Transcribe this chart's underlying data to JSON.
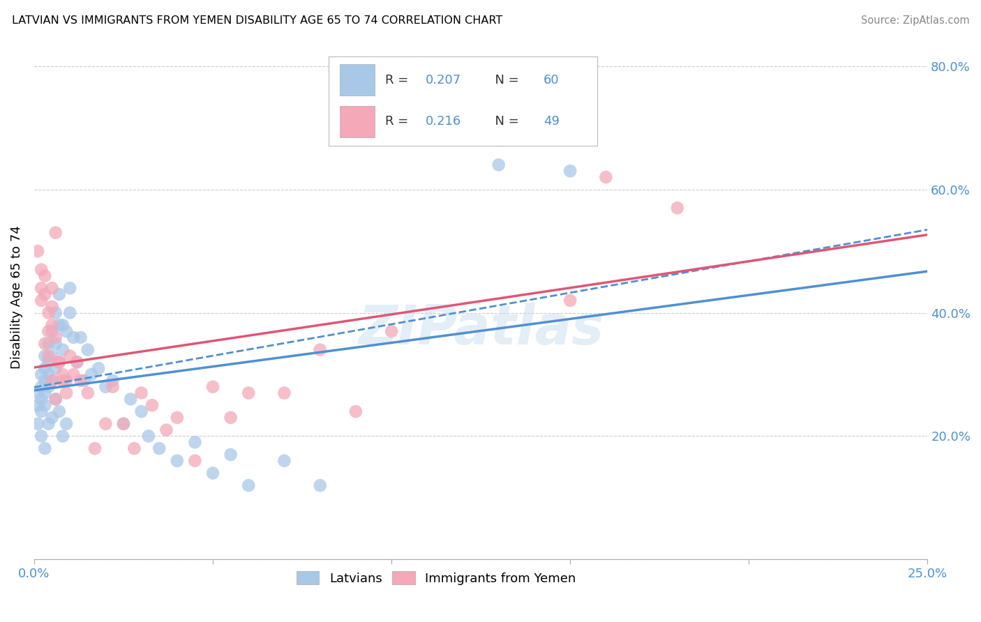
{
  "title": "LATVIAN VS IMMIGRANTS FROM YEMEN DISABILITY AGE 65 TO 74 CORRELATION CHART",
  "source": "Source: ZipAtlas.com",
  "ylabel": "Disability Age 65 to 74",
  "xlim": [
    0.0,
    0.25
  ],
  "ylim": [
    0.0,
    0.85
  ],
  "R_latvian": 0.207,
  "N_latvian": 60,
  "R_yemen": 0.216,
  "N_yemen": 49,
  "color_latvian_fill": "#a8c8e8",
  "color_yemen_fill": "#f4a8b8",
  "color_blue_line": "#5090d0",
  "color_pink_line": "#e05575",
  "color_axis_text": "#4d90d0",
  "color_legend_text_dark": "#333333",
  "watermark_color": "#c8dff0",
  "legend_text1": "R = 0.207  N = 60",
  "legend_text2": "R =  0.216  N = 49",
  "legend_label1": "Latvians",
  "legend_label2": "Immigrants from Yemen"
}
